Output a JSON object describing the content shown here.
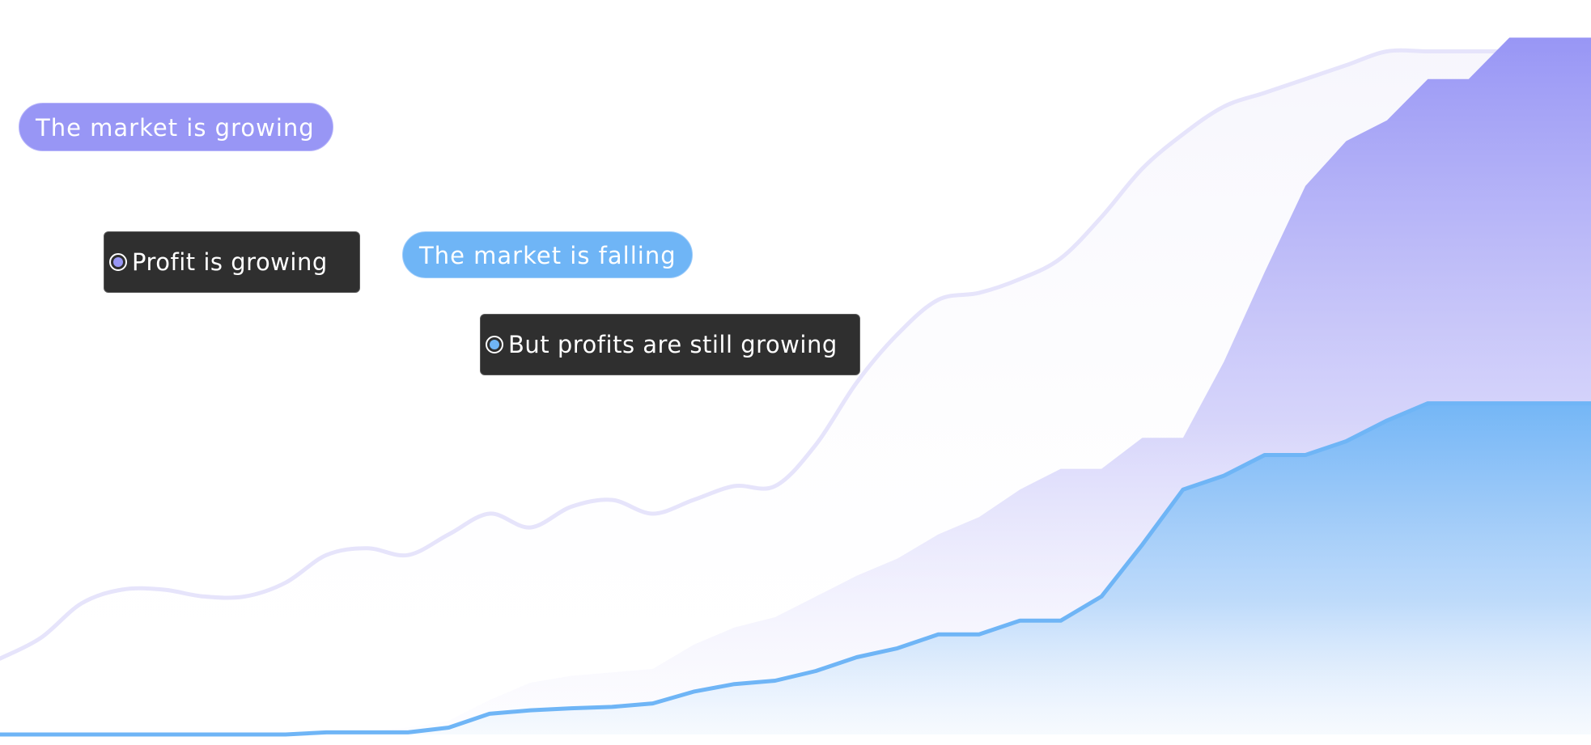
{
  "chart_data": {
    "type": "area",
    "title": "",
    "xlabel": "",
    "ylabel": "",
    "grid": false,
    "legend": "none",
    "x": [
      0,
      1,
      2,
      3,
      4,
      5,
      6,
      7,
      8,
      9,
      10,
      11,
      12,
      13,
      14,
      15,
      16,
      17,
      18,
      19,
      20,
      21,
      22,
      23,
      24,
      25,
      26,
      27,
      28,
      29,
      30,
      31,
      32,
      33,
      34,
      35,
      36,
      37,
      38,
      39
    ],
    "xlim": [
      0,
      39
    ],
    "ylim": [
      0,
      100
    ],
    "series": [
      {
        "name": "",
        "kind": "line",
        "color": "#e6e4fb",
        "values": [
          11,
          14,
          19,
          21,
          21,
          20,
          20,
          22,
          26,
          27,
          26,
          29,
          32,
          30,
          33,
          34,
          32,
          34,
          36,
          36,
          42,
          51,
          58,
          63,
          64,
          66,
          69,
          75,
          82,
          87,
          91,
          93,
          95,
          97,
          99,
          99,
          99,
          99,
          99,
          99
        ]
      },
      {
        "name": "",
        "kind": "area",
        "color": "#9896f5",
        "values": [
          0,
          0,
          0,
          0,
          0,
          0,
          0,
          0,
          0.5,
          0.5,
          1,
          2,
          5,
          7.5,
          8.5,
          9,
          9.5,
          13,
          15.5,
          17,
          20,
          23,
          25.5,
          29,
          31.5,
          35.5,
          38.5,
          38.5,
          43,
          43,
          54,
          67,
          79.5,
          86,
          89,
          95,
          95,
          101,
          101,
          101
        ]
      },
      {
        "name": "",
        "kind": "area",
        "color": "#6fb5f6",
        "values": [
          0,
          0,
          0,
          0,
          0,
          0,
          0,
          0,
          0.3,
          0.3,
          0.3,
          1,
          3,
          3.5,
          3.8,
          4,
          4.5,
          6.2,
          7.3,
          7.8,
          9.2,
          11.2,
          12.5,
          14.5,
          14.5,
          16.5,
          16.5,
          20,
          27.5,
          35.5,
          37.5,
          40.5,
          40.5,
          42.5,
          45.5,
          48,
          48,
          48,
          48,
          48
        ]
      }
    ],
    "annotations": [
      {
        "label": "The market is growing",
        "style": "pill",
        "color": "#9896f5"
      },
      {
        "label": "Profit is growing",
        "style": "callout",
        "marker_color": "#9896f5"
      },
      {
        "label": "The market is falling",
        "style": "pill",
        "color": "#6fb5f6"
      },
      {
        "label": "But profits are still growing",
        "style": "callout",
        "marker_color": "#6fb5f6"
      }
    ]
  }
}
